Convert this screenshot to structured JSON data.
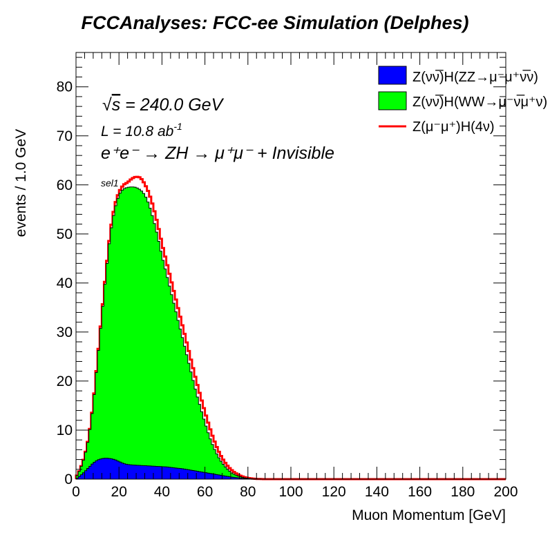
{
  "chart_data": {
    "type": "area",
    "title": "FCCAnalyses: FCC-ee Simulation (Delphes)",
    "xlabel": "Muon Momentum [GeV]",
    "ylabel": "events / 1.0 GeV",
    "xlim": [
      0,
      200
    ],
    "ylim": [
      0,
      87
    ],
    "xticks": [
      "0",
      "20",
      "40",
      "60",
      "80",
      "100",
      "120",
      "140",
      "160",
      "180",
      "200"
    ],
    "yticks": [
      "0",
      "10",
      "20",
      "30",
      "40",
      "50",
      "60",
      "70",
      "80"
    ],
    "grid": false,
    "legend_placement": "top-right",
    "annotations": {
      "sqrt_symbol": "√",
      "sqrt_var": "s",
      "energy": " = 240.0 GeV",
      "lumi_prefix": "L = 10.8 ab",
      "lumi_exp": "-1",
      "process": "e⁺e⁻ → ZH → μ⁺μ⁻ + Invisible",
      "selection": "sel1"
    },
    "colors": {
      "zz": "#0000ff",
      "ww": "#00ff00",
      "signal": "#ff0000",
      "outline": "#000000"
    },
    "series": [
      {
        "name": "Z(νν̅)H(ZZ→μ⁻μ⁺ν̅ν)",
        "style": "filled-stack-bottom",
        "x": [
          0,
          2,
          4,
          6,
          8,
          10,
          12,
          14,
          16,
          18,
          20,
          22,
          24,
          26,
          28,
          30,
          32,
          34,
          36,
          38,
          40,
          42,
          44,
          46,
          48,
          50,
          52,
          54,
          56,
          58,
          60,
          62,
          64,
          66,
          68,
          70,
          72,
          74,
          76,
          78,
          80,
          82,
          84,
          86,
          88,
          90,
          200
        ],
        "values": [
          0,
          0.7,
          1.5,
          2.4,
          3.3,
          3.9,
          4.2,
          4.3,
          4.2,
          4.0,
          3.6,
          3.2,
          3.0,
          2.9,
          2.85,
          2.8,
          2.75,
          2.7,
          2.65,
          2.6,
          2.55,
          2.5,
          2.4,
          2.3,
          2.2,
          2.1,
          1.95,
          1.8,
          1.65,
          1.5,
          1.35,
          1.2,
          1.05,
          0.9,
          0.75,
          0.6,
          0.45,
          0.35,
          0.25,
          0.15,
          0.1,
          0.05,
          0.02,
          0.01,
          0,
          0,
          0
        ]
      },
      {
        "name": "Z(νν̅)H(WW→μ⁻ν̅μ⁺ν)",
        "style": "filled-stack-top",
        "x": [
          0,
          2,
          4,
          6,
          8,
          10,
          12,
          14,
          16,
          18,
          20,
          22,
          24,
          26,
          28,
          30,
          32,
          34,
          36,
          38,
          40,
          42,
          44,
          46,
          48,
          50,
          52,
          54,
          56,
          58,
          60,
          62,
          64,
          66,
          68,
          70,
          72,
          74,
          76,
          78,
          80,
          82,
          84,
          86,
          88,
          90,
          200
        ],
        "values": [
          0.3,
          2,
          4.5,
          8.5,
          15,
          24,
          33,
          42,
          50,
          55,
          58,
          59.2,
          59.5,
          59.6,
          59.5,
          59,
          58,
          56,
          53,
          49.5,
          45.5,
          42,
          38.5,
          35,
          31.5,
          28,
          24.5,
          21,
          17.5,
          14.5,
          11.5,
          8.8,
          6.5,
          4.7,
          3.3,
          2.2,
          1.4,
          0.9,
          0.55,
          0.3,
          0.15,
          0.07,
          0.03,
          0.01,
          0,
          0,
          0
        ]
      },
      {
        "name": "Z(μ⁻μ⁺)H(4ν)",
        "style": "line",
        "x": [
          0,
          2,
          4,
          6,
          8,
          10,
          12,
          14,
          16,
          18,
          20,
          22,
          24,
          26,
          28,
          30,
          32,
          34,
          36,
          38,
          40,
          42,
          44,
          46,
          48,
          50,
          52,
          54,
          56,
          58,
          60,
          62,
          64,
          66,
          68,
          70,
          72,
          74,
          76,
          78,
          80,
          82,
          84,
          86,
          88,
          90,
          200
        ],
        "values": [
          0.3,
          2,
          4.6,
          8.6,
          15.2,
          24.3,
          33.4,
          42.5,
          50.6,
          55.8,
          58.6,
          60,
          60.5,
          61.3,
          61.7,
          61.5,
          60.2,
          58.3,
          55.5,
          52,
          48,
          44.5,
          41,
          37.5,
          34,
          30.5,
          27,
          23.5,
          20,
          16.8,
          13.7,
          10.8,
          8.2,
          6,
          4.3,
          3,
          2,
          1.3,
          0.8,
          0.45,
          0.25,
          0.12,
          0.05,
          0.02,
          0,
          0,
          0
        ]
      }
    ]
  }
}
